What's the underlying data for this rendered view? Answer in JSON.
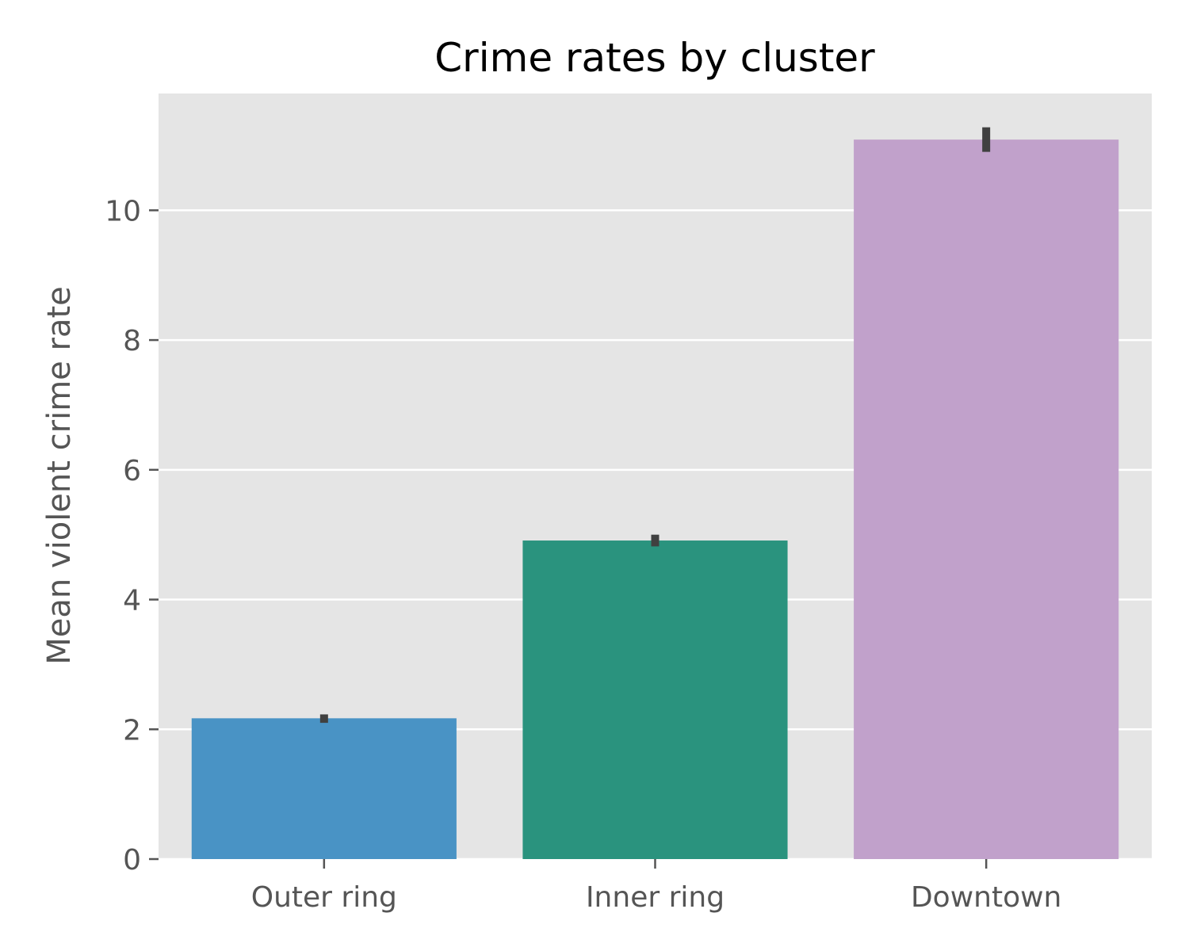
{
  "chart_data": {
    "type": "bar",
    "title": "Crime rates by cluster",
    "xlabel": "",
    "ylabel": "Mean violent crime rate",
    "categories": [
      "Outer ring",
      "Inner ring",
      "Downtown"
    ],
    "values": [
      2.17,
      4.91,
      11.09
    ],
    "error_bars": [
      [
        2.1,
        2.23
      ],
      [
        4.82,
        5.0
      ],
      [
        10.9,
        11.28
      ]
    ],
    "colors": [
      "#4993c5",
      "#2a937e",
      "#c1a1cb"
    ],
    "ylim": [
      0,
      11.8
    ],
    "yticks": [
      0,
      2,
      4,
      6,
      8,
      10
    ],
    "grid": true,
    "background": "#e5e5e5",
    "error_bar_color": "#404040"
  }
}
